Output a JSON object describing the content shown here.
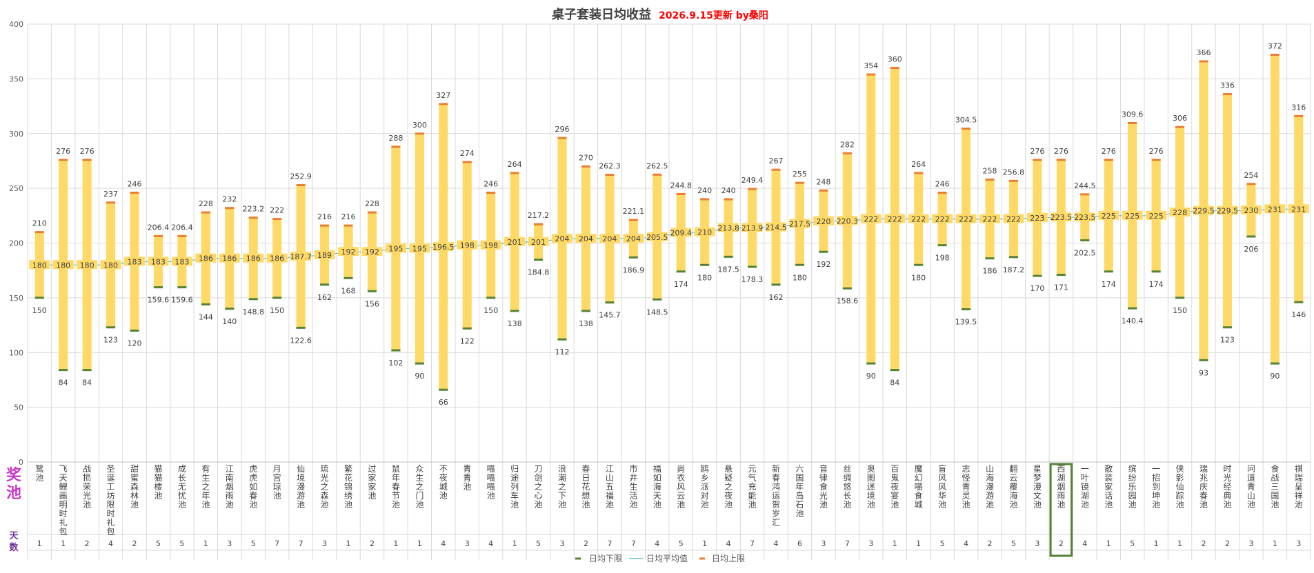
{
  "chart_data": {
    "type": "bar",
    "title": "桌子套装日均收益",
    "subtitle": "2026.9.15更新 by桑阳",
    "ylim": [
      0,
      400
    ],
    "yticks": [
      0,
      50,
      100,
      150,
      200,
      250,
      300,
      350,
      400
    ],
    "row_labels": {
      "pool": "奖池",
      "days": "天数"
    },
    "legend": {
      "low": "日均下限",
      "avg": "日均平均值",
      "high": "日均上限"
    },
    "legend_position": "bottom",
    "grid": true,
    "colors": {
      "bar": "#ffd966",
      "low": "#548235",
      "avg": "#5fc4d0",
      "high": "#ed7d31",
      "title_sub": "#ff0000",
      "pool_label": "#cc33cc",
      "days_label": "#7030a0",
      "highlight_box": "#548235"
    },
    "highlight_index": 43,
    "categories": [
      "鹭池",
      "飞天鲤画明时礼包",
      "战损荣光池",
      "圣诞工坊限时礼包",
      "甜蜜森林池",
      "猫猫楼池",
      "成长无忧池",
      "有生之年池",
      "江南烟雨池",
      "虎虎如春池",
      "月宫琼池",
      "仙境漫游池",
      "琉光之森池",
      "繁花锦绣池",
      "过家家池",
      "鼠年春节池",
      "众生之门池",
      "不夜城池",
      "青青池",
      "喵喵喵池",
      "归途列车池",
      "刀剑之心池",
      "浪潮之下池",
      "春日花想池",
      "江山五福池",
      "市井生活池",
      "福如海天池",
      "尚衣风云池",
      "鸥乡派对池",
      "悬疑之夜池",
      "元气充能池",
      "新春鸿运贺岁汇",
      "六国年岛石池",
      "音律食光池",
      "丝绸悠长池",
      "奥图迷境池",
      "百鬼夜宴池",
      "魔幻喵食城",
      "盲风风华池",
      "志怪青灵池",
      "山海漫游池",
      "翻云覆海池",
      "星梦漫文池",
      "西湖烟雨池",
      "一叶镜湖池",
      "散装家话池",
      "缤纷乐园池",
      "一招到坤池",
      "侠影仙踪池",
      "瑞兆庆春池",
      "时光经典池",
      "问道青山池",
      "食战三国池",
      "祺瑞呈祥池"
    ],
    "days": [
      1,
      1,
      2,
      4,
      2,
      5,
      5,
      1,
      3,
      5,
      7,
      7,
      3,
      1,
      2,
      1,
      1,
      4,
      3,
      4,
      1,
      5,
      3,
      2,
      7,
      7,
      4,
      5,
      1,
      4,
      7,
      4,
      6,
      3,
      7,
      3,
      1,
      1,
      5,
      4,
      2,
      5,
      3,
      2,
      4,
      1,
      5,
      1,
      1,
      2,
      2,
      3,
      1,
      3
    ],
    "series": [
      {
        "name": "日均下限",
        "values": [
          150,
          84,
          84,
          123,
          120,
          159.6,
          159.6,
          144,
          140,
          148.8,
          150,
          122.6,
          162,
          168,
          156,
          102,
          90,
          66,
          122,
          150,
          138,
          184.8,
          112,
          138,
          145.7,
          186.9,
          148.5,
          174,
          180,
          187.5,
          178.3,
          162,
          180,
          192,
          158.6,
          90,
          84,
          180,
          198,
          139.5,
          186,
          187.2,
          170,
          171,
          202.5,
          174,
          140.4,
          174,
          150,
          93,
          123,
          206,
          90,
          146
        ]
      },
      {
        "name": "日均平均值",
        "values": [
          180,
          180,
          180,
          180,
          183,
          183,
          183,
          186,
          186,
          186,
          186,
          187.7,
          189,
          192,
          192,
          195,
          195,
          196.5,
          198,
          198,
          201,
          201,
          204,
          204,
          204,
          204,
          205.5,
          209.4,
          210,
          213.8,
          213.9,
          214.5,
          217.5,
          220,
          220.3,
          222,
          222,
          222,
          222,
          222,
          222,
          222,
          223,
          223.5,
          223.5,
          225,
          225,
          225,
          228,
          229.5,
          229.5,
          230,
          231,
          231
        ]
      },
      {
        "name": "日均上限",
        "values": [
          210,
          276,
          276,
          237,
          246,
          206.4,
          206.4,
          228,
          232,
          223.2,
          222,
          252.9,
          216,
          216,
          228,
          288,
          300,
          327,
          274,
          246,
          264,
          217.2,
          296,
          270,
          262.3,
          221.1,
          262.5,
          244.8,
          240,
          240,
          249.4,
          267,
          255,
          248,
          282,
          354,
          360,
          264,
          246,
          304.5,
          258,
          256.8,
          276,
          276,
          244.5,
          276,
          309.6,
          276,
          306,
          366,
          336,
          254,
          372,
          316
        ]
      }
    ]
  }
}
